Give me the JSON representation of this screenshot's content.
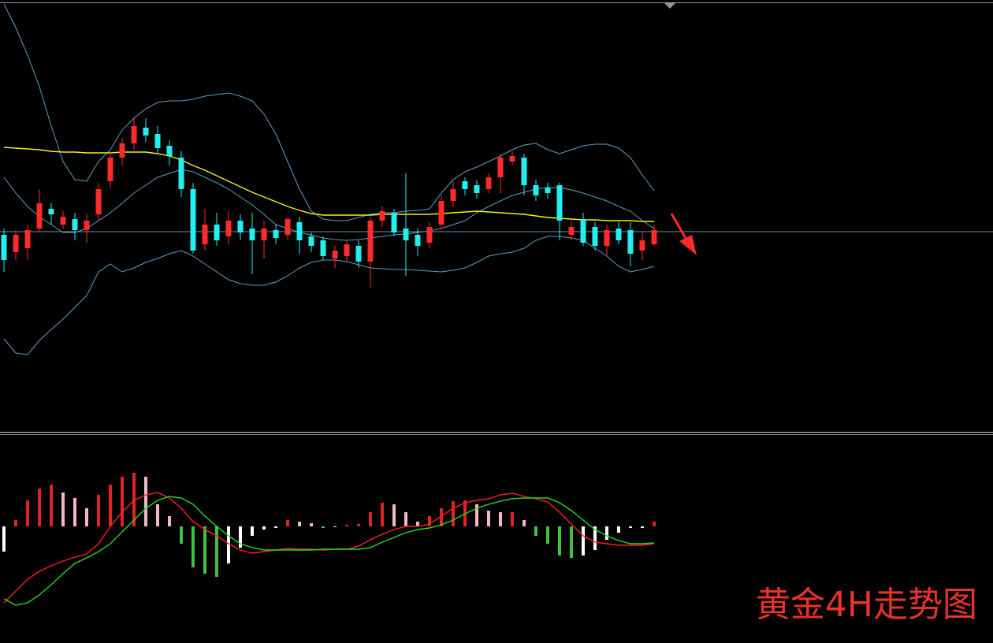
{
  "watermark": "黄金4H走势图",
  "chart_data": [
    {
      "type": "candlestick",
      "categories": [
        null,
        null,
        null,
        null,
        null,
        null,
        null,
        null,
        null,
        null,
        null,
        null,
        null,
        null,
        null,
        null,
        null,
        null,
        null,
        null,
        null,
        null,
        null,
        null,
        null,
        null,
        null,
        null,
        null,
        null,
        null,
        null,
        null,
        null,
        null,
        null,
        null,
        null,
        null,
        null,
        null,
        null,
        null,
        null,
        null,
        null,
        null,
        null,
        null,
        null,
        null,
        null,
        null,
        null,
        null,
        null
      ],
      "open": [
        252,
        230,
        235,
        260,
        285,
        265,
        272,
        258,
        278,
        320,
        350,
        368,
        388,
        380,
        365,
        350,
        310,
        240,
        265,
        250,
        270,
        260,
        245,
        258,
        252,
        268,
        250,
        245,
        222,
        225,
        238,
        218,
        270,
        280,
        260,
        252,
        242,
        265,
        295,
        320,
        315,
        310,
        325,
        345,
        350,
        315,
        312,
        315,
        252,
        272,
        262,
        238,
        260,
        258,
        232,
        240
      ],
      "high": [
        260,
        258,
        265,
        310,
        292,
        282,
        280,
        278,
        318,
        358,
        375,
        402,
        400,
        390,
        372,
        358,
        318,
        285,
        280,
        282,
        278,
        280,
        270,
        265,
        275,
        275,
        255,
        250,
        238,
        245,
        245,
        275,
        288,
        285,
        330,
        260,
        268,
        302,
        320,
        325,
        322,
        330,
        355,
        358,
        355,
        322,
        318,
        318,
        270,
        280,
        268,
        265,
        268,
        268,
        255,
        265
      ],
      "low": [
        205,
        220,
        220,
        255,
        265,
        260,
        245,
        242,
        270,
        312,
        340,
        360,
        370,
        355,
        340,
        300,
        228,
        232,
        238,
        240,
        245,
        202,
        222,
        240,
        245,
        228,
        230,
        220,
        210,
        218,
        210,
        185,
        262,
        250,
        200,
        225,
        235,
        260,
        288,
        302,
        298,
        305,
        305,
        340,
        302,
        295,
        298,
        245,
        245,
        238,
        232,
        225,
        240,
        212,
        220,
        238
      ],
      "close": [
        220,
        252,
        258,
        292,
        278,
        275,
        258,
        270,
        310,
        350,
        368,
        390,
        378,
        362,
        352,
        310,
        232,
        265,
        245,
        270,
        255,
        245,
        260,
        248,
        272,
        245,
        238,
        225,
        232,
        240,
        218,
        270,
        282,
        255,
        245,
        238,
        262,
        295,
        310,
        310,
        305,
        325,
        350,
        352,
        315,
        302,
        305,
        270,
        262,
        242,
        238,
        258,
        245,
        228,
        245,
        258
      ],
      "up_color": "#ff2a2a",
      "down_color": "#22f0f0",
      "lines": [
        {
          "color": "#5d9fc0",
          "values": [
            545,
            515,
            480,
            440,
            390,
            345,
            322,
            320,
            345,
            360,
            385,
            400,
            412,
            420,
            422,
            422,
            424,
            428,
            430,
            432,
            428,
            422,
            405,
            380,
            345,
            310,
            282,
            272,
            270,
            270,
            274,
            278,
            280,
            280,
            282,
            283,
            285,
            305,
            322,
            332,
            338,
            345,
            352,
            360,
            366,
            368,
            360,
            355,
            360,
            365,
            367,
            367,
            362,
            350,
            328,
            308
          ]
        },
        {
          "color": "#5d9fc0",
          "values": [
            325,
            305,
            288,
            275,
            265,
            255,
            255,
            260,
            270,
            280,
            292,
            305,
            315,
            325,
            330,
            335,
            332,
            325,
            318,
            310,
            300,
            290,
            278,
            265,
            260,
            255,
            252,
            248,
            246,
            245,
            246,
            248,
            250,
            252,
            253,
            255,
            257,
            260,
            265,
            270,
            280,
            288,
            295,
            302,
            306,
            310,
            312,
            312,
            309,
            305,
            300,
            295,
            288,
            282,
            270,
            260
          ]
        },
        {
          "color": "#5d9fc0",
          "values": [
            120,
            102,
            100,
            118,
            132,
            145,
            160,
            175,
            205,
            215,
            205,
            210,
            217,
            222,
            228,
            232,
            225,
            215,
            205,
            195,
            190,
            188,
            188,
            192,
            200,
            210,
            217,
            220,
            220,
            218,
            214,
            210,
            209,
            208,
            208,
            207,
            206,
            205,
            207,
            210,
            217,
            225,
            228,
            230,
            235,
            245,
            250,
            250,
            248,
            245,
            235,
            225,
            212,
            205,
            208,
            212
          ]
        },
        {
          "color": "#f2f21e",
          "values": [
            363,
            362,
            361,
            360,
            358,
            357,
            357,
            356,
            356,
            356,
            357,
            357,
            357,
            355,
            352,
            347,
            340,
            334,
            327,
            320,
            313,
            306,
            300,
            294,
            288,
            283,
            279,
            277,
            277,
            277,
            277,
            277,
            278,
            278,
            278,
            278,
            278,
            279,
            280,
            281,
            282,
            281,
            280,
            279,
            278,
            276,
            274,
            273,
            272,
            271,
            271,
            270,
            270,
            270,
            269,
            269
          ]
        }
      ],
      "price_line": 256,
      "price_line_color": "#6f8fa6",
      "ylim": [
        0,
        550
      ]
    },
    {
      "type": "macd",
      "categories": [
        null,
        null,
        null,
        null,
        null,
        null,
        null,
        null,
        null,
        null,
        null,
        null,
        null,
        null,
        null,
        null,
        null,
        null,
        null,
        null,
        null,
        null,
        null,
        null,
        null,
        null,
        null,
        null,
        null,
        null,
        null,
        null,
        null,
        null,
        null,
        null,
        null,
        null,
        null,
        null,
        null,
        null,
        null,
        null,
        null,
        null,
        null,
        null,
        null,
        null,
        null,
        null,
        null,
        null,
        null,
        null
      ],
      "histogram": [
        -32,
        8,
        33,
        48,
        53,
        43,
        36,
        23,
        40,
        53,
        63,
        68,
        63,
        28,
        13,
        -22,
        -52,
        -60,
        -64,
        -47,
        -27,
        -12,
        -4,
        -2,
        8,
        6,
        4,
        -2,
        -1,
        2,
        3,
        18,
        30,
        28,
        18,
        6,
        13,
        23,
        32,
        33,
        28,
        20,
        18,
        18,
        8,
        -12,
        -22,
        -37,
        -40,
        -37,
        -30,
        -17,
        -8,
        -2,
        -2,
        6
      ],
      "histogram_colors": [
        "#e02424",
        "#f4b8c4",
        "#3fc23f",
        "#ffffff"
      ],
      "lines": [
        {
          "color": "#ff1e1e",
          "values": [
            -97,
            -82,
            -67,
            -57,
            -50,
            -44,
            -39,
            -35,
            -22,
            0,
            18,
            33,
            40,
            43,
            36,
            23,
            6,
            -4,
            -12,
            -22,
            -30,
            -34,
            -32,
            -30,
            -28,
            -29,
            -29,
            -30,
            -29,
            -29,
            -25,
            -17,
            -10,
            -4,
            0,
            0,
            3,
            13,
            23,
            30,
            33,
            35,
            40,
            42,
            38,
            35,
            31,
            18,
            3,
            -12,
            -20,
            -22,
            -24,
            -24,
            -24,
            -22
          ]
        },
        {
          "color": "#22dd22",
          "values": [
            -92,
            -100,
            -97,
            -87,
            -74,
            -60,
            -47,
            -40,
            -32,
            -22,
            -7,
            8,
            23,
            33,
            38,
            36,
            28,
            13,
            0,
            -12,
            -22,
            -27,
            -30,
            -30,
            -30,
            -30,
            -30,
            -29,
            -29,
            -29,
            -29,
            -27,
            -20,
            -14,
            -8,
            -4,
            -2,
            2,
            8,
            16,
            23,
            28,
            32,
            35,
            36,
            36,
            36,
            30,
            20,
            8,
            -4,
            -12,
            -18,
            -22,
            -22,
            -21
          ]
        }
      ],
      "ylim": [
        -148,
        116
      ]
    }
  ]
}
